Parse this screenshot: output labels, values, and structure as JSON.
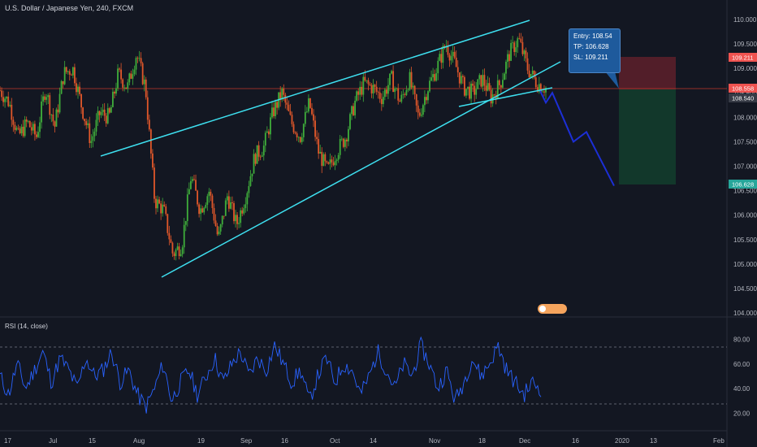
{
  "header": {
    "symbol_title": "U.S. Dollar / Japanese Yen, 240, FXCM"
  },
  "rsi": {
    "title": "RSI (14, close)",
    "upper_level": 70,
    "lower_level": 30
  },
  "tooltip": {
    "entry": "Entry: 108.54",
    "tp": "TP: 106.628",
    "sl": "SL: 109.211"
  },
  "price_tags": {
    "sl": "109.211",
    "last": "108.558",
    "entry": "108.540",
    "tp": "106.628"
  },
  "colors": {
    "up": "#26a69a",
    "down": "#ef5350",
    "candle_up": "#3fae3b",
    "candle_down": "#e0572a",
    "trendline": "#3ee0f0",
    "projection": "#1c2fd6",
    "rsi_line": "#2962ff",
    "sl_zone": "#5a1f2a",
    "tp_zone": "#123a2c"
  },
  "chart_data": {
    "type": "line",
    "title": "U.S. Dollar / Japanese Yen, 240, FXCM",
    "x_tick_labels": [
      "17",
      "Jul",
      "15",
      "Aug",
      "19",
      "Sep",
      "16",
      "Oct",
      "14",
      "Nov",
      "18",
      "Dec",
      "16",
      "2020",
      "13",
      "Feb"
    ],
    "y_tick_labels": [
      "110.000",
      "109.500",
      "109.000",
      "108.500",
      "108.000",
      "107.500",
      "107.000",
      "106.500",
      "106.000",
      "105.500",
      "105.000",
      "104.500",
      "104.000"
    ],
    "ylim": [
      104.0,
      110.0
    ],
    "price_path": [
      108.55,
      108.3,
      107.6,
      107.9,
      107.6,
      108.6,
      107.8,
      108.9,
      109.0,
      108.2,
      107.5,
      108.1,
      108.0,
      108.9,
      108.6,
      109.3,
      108.6,
      106.3,
      106.1,
      105.2,
      105.4,
      106.8,
      106.1,
      106.5,
      105.5,
      106.4,
      105.8,
      106.4,
      107.2,
      107.4,
      108.1,
      108.5,
      107.9,
      107.6,
      108.3,
      107.3,
      106.9,
      107.3,
      107.6,
      108.3,
      108.7,
      108.6,
      108.4,
      108.8,
      108.3,
      108.8,
      108.0,
      108.6,
      109.0,
      109.5,
      109.1,
      108.6,
      108.5,
      108.8,
      108.4,
      108.7,
      109.3,
      109.6,
      109.0,
      108.7,
      108.6
    ],
    "rsi_ylim": [
      15,
      85
    ],
    "rsi_ticks": [
      "80.00",
      "60.00",
      "40.00",
      "20.00"
    ],
    "rsi_values": [
      50,
      35,
      60,
      40,
      55,
      70,
      45,
      65,
      55,
      40,
      65,
      50,
      55,
      70,
      45,
      55,
      35,
      25,
      40,
      60,
      30,
      45,
      55,
      35,
      50,
      65,
      45,
      60,
      70,
      50,
      65,
      55,
      75,
      60,
      45,
      55,
      30,
      50,
      65,
      45,
      60,
      55,
      35,
      50,
      70,
      55,
      40,
      60,
      50,
      75,
      60,
      40,
      55,
      30,
      45,
      65,
      50,
      60,
      75,
      55,
      45,
      35,
      45,
      40
    ],
    "trade": {
      "entry": 108.54,
      "take_profit": 106.628,
      "stop_loss": 109.211,
      "last_price": 108.558
    },
    "projection_path": [
      108.54,
      108.3,
      108.5,
      108.0,
      107.5,
      107.7,
      106.6
    ]
  }
}
